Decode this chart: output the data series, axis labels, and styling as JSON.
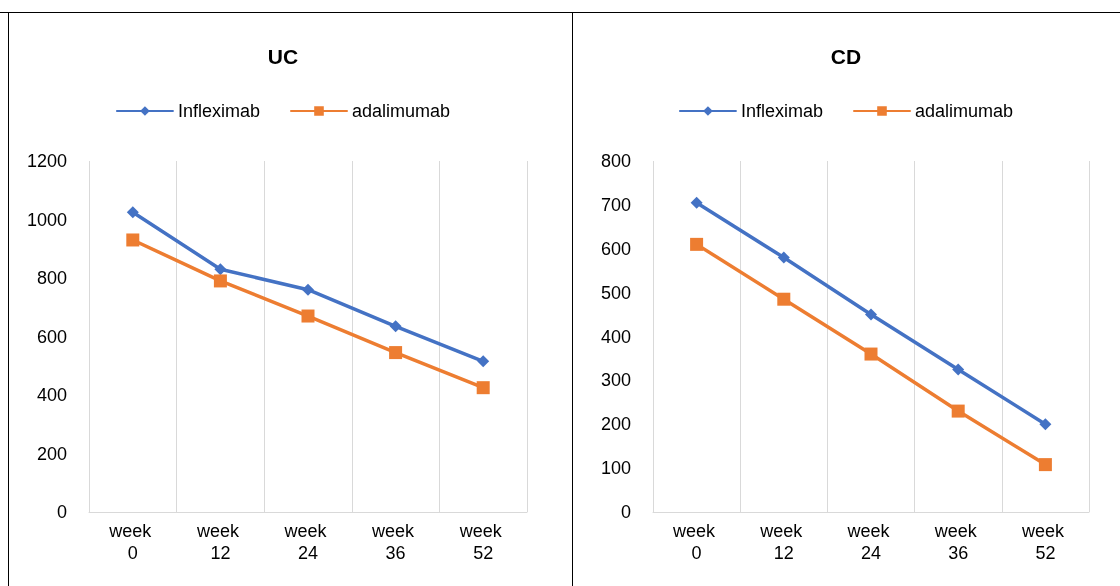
{
  "chart_data": [
    {
      "type": "line",
      "title": "UC",
      "categories": [
        "week 0",
        "week 12",
        "week 24",
        "week 36",
        "week 52"
      ],
      "series": [
        {
          "name": "Infleximab",
          "color": "#4472c4",
          "values": [
            1025,
            830,
            760,
            635,
            515
          ],
          "marker": "diamond"
        },
        {
          "name": "adalimumab",
          "color": "#ed7d31",
          "values": [
            930,
            790,
            670,
            545,
            425
          ],
          "marker": "square"
        }
      ],
      "ylim": [
        0,
        1200
      ],
      "yticks": [
        0,
        200,
        400,
        600,
        800,
        1000,
        1200
      ],
      "grid": "x",
      "legend": "top",
      "line_style": "solid"
    },
    {
      "type": "line",
      "title": "CD",
      "categories": [
        "week 0",
        "week 12",
        "week 24",
        "week 36",
        "week 52"
      ],
      "series": [
        {
          "name": "Infleximab",
          "color": "#4472c4",
          "values": [
            705,
            580,
            450,
            325,
            200
          ],
          "marker": "diamond"
        },
        {
          "name": "adalimumab",
          "color": "#ed7d31",
          "values": [
            610,
            485,
            360,
            230,
            108
          ],
          "marker": "square"
        }
      ],
      "ylim": [
        0,
        800
      ],
      "yticks": [
        0,
        100,
        200,
        300,
        400,
        500,
        600,
        700,
        800
      ],
      "grid": "x",
      "legend": "top",
      "line_style": "solid"
    }
  ]
}
